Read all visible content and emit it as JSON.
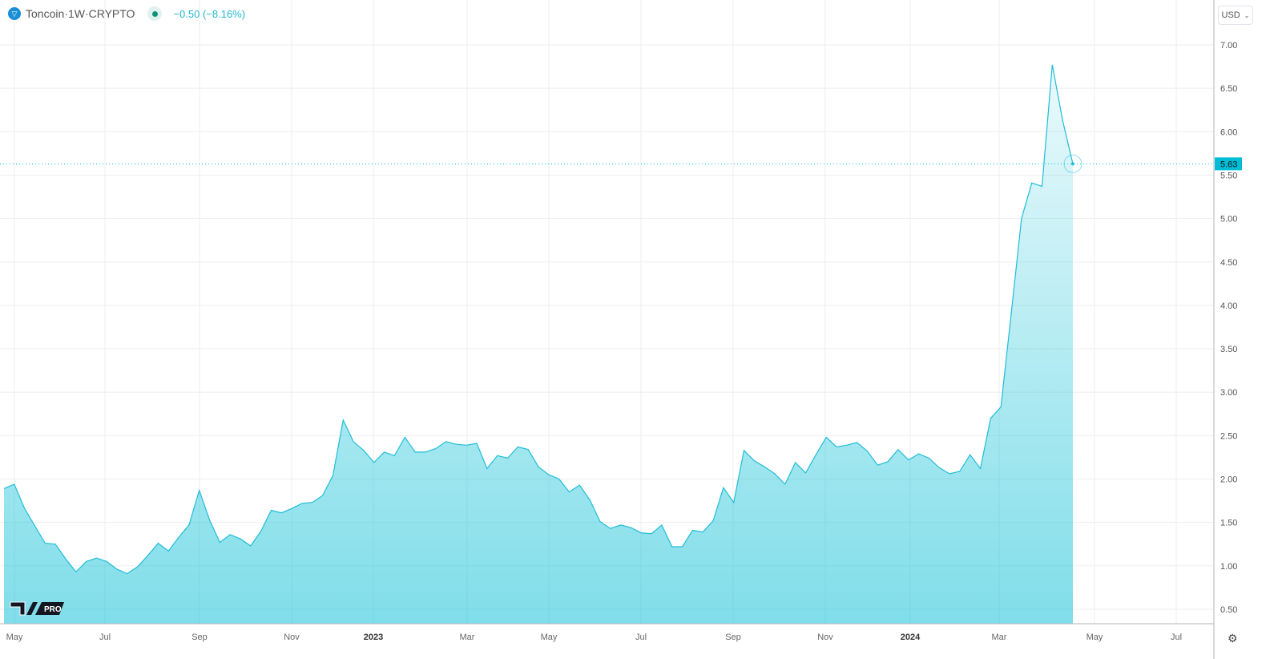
{
  "header": {
    "symbol": "Toncoin",
    "separator1": " · ",
    "interval": "1W",
    "separator2": " · ",
    "exchange": "CRYPTO",
    "change": "−0.50 (−8.16%)"
  },
  "currency_button": "USD",
  "icons": [
    "toncoin-logo-icon",
    "market-status-dot-icon",
    "chevron-down-icon",
    "tradingview-pro-logo",
    "settings-gear-icon"
  ],
  "colors": {
    "line": "#1fbdd6",
    "fill": "#7fdbe8",
    "last_price_badge": "#00bcd4",
    "change": "#22b8d0"
  },
  "chart_data": {
    "type": "area",
    "title": "Toncoin · 1W · CRYPTO",
    "xlabel": "",
    "ylabel": "",
    "ylim": [
      0.35,
      7.2
    ],
    "grid": true,
    "y_ticks": [
      "7.00",
      "6.50",
      "6.00",
      "5.50",
      "5.00",
      "4.50",
      "4.00",
      "3.50",
      "3.00",
      "2.50",
      "2.00",
      "1.50",
      "1.00",
      "0.50"
    ],
    "x_ticks": [
      "May",
      "Jul",
      "Sep",
      "Nov",
      "2023",
      "Mar",
      "May",
      "Jul",
      "Sep",
      "Nov",
      "2024",
      "Mar",
      "May",
      "Jul"
    ],
    "last_price": "5.63",
    "values": [
      1.89,
      1.94,
      1.66,
      1.46,
      1.26,
      1.25,
      1.08,
      0.93,
      1.05,
      1.09,
      1.05,
      0.96,
      0.91,
      0.99,
      1.12,
      1.26,
      1.17,
      1.33,
      1.47,
      1.87,
      1.53,
      1.27,
      1.36,
      1.31,
      1.23,
      1.4,
      1.64,
      1.61,
      1.66,
      1.72,
      1.73,
      1.81,
      2.04,
      2.68,
      2.43,
      2.33,
      2.19,
      2.31,
      2.27,
      2.48,
      2.31,
      2.31,
      2.35,
      2.43,
      2.4,
      2.39,
      2.41,
      2.12,
      2.27,
      2.24,
      2.37,
      2.34,
      2.14,
      2.05,
      2.0,
      1.85,
      1.93,
      1.76,
      1.51,
      1.43,
      1.47,
      1.44,
      1.38,
      1.37,
      1.47,
      1.22,
      1.22,
      1.41,
      1.39,
      1.52,
      1.9,
      1.73,
      2.33,
      2.21,
      2.14,
      2.06,
      1.94,
      2.19,
      2.07,
      2.28,
      2.48,
      2.37,
      2.39,
      2.42,
      2.32,
      2.16,
      2.2,
      2.34,
      2.22,
      2.29,
      2.24,
      2.13,
      2.06,
      2.09,
      2.28,
      2.12,
      2.7,
      2.83,
      3.9,
      5.0,
      5.41,
      5.37,
      6.77,
      6.13,
      5.63
    ]
  }
}
